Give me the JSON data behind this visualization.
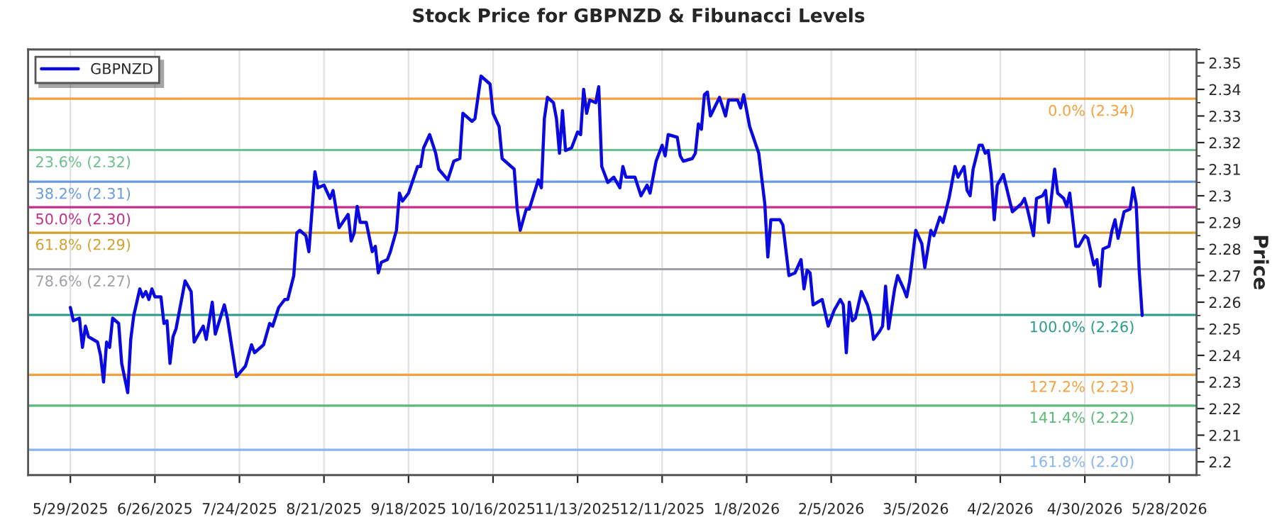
{
  "chart_data": {
    "type": "line",
    "title": "Stock Price for GBPNZD & Fibunacci Levels",
    "ylabel": "Price",
    "x": [
      "2025-05-29",
      "2025-05-30",
      "2025-06-01",
      "2025-06-02",
      "2025-06-03",
      "2025-06-04",
      "2025-06-07",
      "2025-06-08",
      "2025-06-09",
      "2025-06-10",
      "2025-06-11",
      "2025-06-12",
      "2025-06-14",
      "2025-06-15",
      "2025-06-17",
      "2025-06-18",
      "2025-06-19",
      "2025-06-21",
      "2025-06-22",
      "2025-06-23",
      "2025-06-24",
      "2025-06-25",
      "2025-06-26",
      "2025-06-28",
      "2025-06-29",
      "2025-06-30",
      "2025-07-01",
      "2025-07-02",
      "2025-07-03",
      "2025-07-06",
      "2025-07-08",
      "2025-07-09",
      "2025-07-12",
      "2025-07-13",
      "2025-07-15",
      "2025-07-16",
      "2025-07-19",
      "2025-07-20",
      "2025-07-23",
      "2025-07-26",
      "2025-07-28",
      "2025-07-29",
      "2025-08-01",
      "2025-08-03",
      "2025-08-04",
      "2025-08-06",
      "2025-08-08",
      "2025-08-09",
      "2025-08-11",
      "2025-08-12",
      "2025-08-13",
      "2025-08-15",
      "2025-08-16",
      "2025-08-18",
      "2025-08-19",
      "2025-08-21",
      "2025-08-23",
      "2025-08-24",
      "2025-08-26",
      "2025-08-29",
      "2025-08-30",
      "2025-08-31",
      "2025-09-01",
      "2025-09-02",
      "2025-09-04",
      "2025-09-06",
      "2025-09-07",
      "2025-09-08",
      "2025-09-09",
      "2025-09-11",
      "2025-09-12",
      "2025-09-14",
      "2025-09-15",
      "2025-09-16",
      "2025-09-18",
      "2025-09-21",
      "2025-09-22",
      "2025-09-23",
      "2025-09-25",
      "2025-09-27",
      "2025-09-28",
      "2025-10-01",
      "2025-10-03",
      "2025-10-05",
      "2025-10-06",
      "2025-10-09",
      "2025-10-10",
      "2025-10-12",
      "2025-10-15",
      "2025-10-16",
      "2025-10-18",
      "2025-10-19",
      "2025-10-22",
      "2025-10-23",
      "2025-10-24",
      "2025-10-25",
      "2025-10-27",
      "2025-10-28",
      "2025-10-31",
      "2025-11-01",
      "2025-11-02",
      "2025-11-03",
      "2025-11-05",
      "2025-11-06",
      "2025-11-07",
      "2025-11-08",
      "2025-11-09",
      "2025-11-11",
      "2025-11-13",
      "2025-11-14",
      "2025-11-15",
      "2025-11-16",
      "2025-11-17",
      "2025-11-19",
      "2025-11-20",
      "2025-11-21",
      "2025-11-23",
      "2025-11-25",
      "2025-11-27",
      "2025-11-28",
      "2025-11-29",
      "2025-12-02",
      "2025-12-04",
      "2025-12-06",
      "2025-12-07",
      "2025-12-09",
      "2025-12-11",
      "2025-12-12",
      "2025-12-13",
      "2025-12-16",
      "2025-12-17",
      "2025-12-18",
      "2025-12-21",
      "2025-12-22",
      "2025-12-23",
      "2025-12-24",
      "2025-12-25",
      "2025-12-26",
      "2025-12-27",
      "2025-12-30",
      "2026-01-01",
      "2026-01-02",
      "2026-01-05",
      "2026-01-06",
      "2026-01-07",
      "2026-01-09",
      "2026-01-12",
      "2026-01-14",
      "2026-01-15",
      "2026-01-16",
      "2026-01-19",
      "2026-01-20",
      "2026-01-22",
      "2026-01-24",
      "2026-01-26",
      "2026-01-27",
      "2026-01-28",
      "2026-01-29",
      "2026-01-30",
      "2026-02-02",
      "2026-02-04",
      "2026-02-06",
      "2026-02-08",
      "2026-02-09",
      "2026-02-10",
      "2026-02-11",
      "2026-02-12",
      "2026-02-13",
      "2026-02-15",
      "2026-02-17",
      "2026-02-18",
      "2026-02-19",
      "2026-02-21",
      "2026-02-22",
      "2026-02-23",
      "2026-02-24",
      "2026-02-26",
      "2026-02-27",
      "2026-03-01",
      "2026-03-02",
      "2026-03-03",
      "2026-03-05",
      "2026-03-07",
      "2026-03-08",
      "2026-03-10",
      "2026-03-11",
      "2026-03-13",
      "2026-03-14",
      "2026-03-16",
      "2026-03-18",
      "2026-03-19",
      "2026-03-21",
      "2026-03-22",
      "2026-03-23",
      "2026-03-24",
      "2026-03-26",
      "2026-03-27",
      "2026-03-28",
      "2026-03-29",
      "2026-03-30",
      "2026-03-31",
      "2026-04-01",
      "2026-04-03",
      "2026-04-06",
      "2026-04-07",
      "2026-04-09",
      "2026-04-10",
      "2026-04-11",
      "2026-04-13",
      "2026-04-14",
      "2026-04-16",
      "2026-04-17",
      "2026-04-18",
      "2026-04-20",
      "2026-04-21",
      "2026-04-23",
      "2026-04-24",
      "2026-04-25",
      "2026-04-27",
      "2026-04-28",
      "2026-04-30",
      "2026-05-01",
      "2026-05-03",
      "2026-05-04",
      "2026-05-05",
      "2026-05-06",
      "2026-05-08",
      "2026-05-09",
      "2026-05-10",
      "2026-05-11",
      "2026-05-13",
      "2026-05-15",
      "2026-05-16",
      "2026-05-17",
      "2026-05-18",
      "2026-05-19"
    ],
    "series": [
      {
        "name": "GBPNZD",
        "color": "#0a0ae0",
        "values": [
          2.258,
          2.253,
          2.254,
          2.243,
          2.251,
          2.247,
          2.245,
          2.24,
          2.23,
          2.245,
          2.243,
          2.254,
          2.252,
          2.237,
          2.226,
          2.246,
          2.255,
          2.265,
          2.262,
          2.264,
          2.261,
          2.265,
          2.262,
          2.262,
          2.252,
          2.253,
          2.237,
          2.247,
          2.25,
          2.268,
          2.264,
          2.245,
          2.251,
          2.246,
          2.26,
          2.248,
          2.259,
          2.254,
          2.232,
          2.236,
          2.244,
          2.241,
          2.244,
          2.252,
          2.251,
          2.258,
          2.261,
          2.261,
          2.27,
          2.286,
          2.287,
          2.285,
          2.279,
          2.309,
          2.303,
          2.304,
          2.299,
          2.302,
          2.288,
          2.293,
          2.283,
          2.286,
          2.296,
          2.29,
          2.29,
          2.279,
          2.281,
          2.271,
          2.275,
          2.276,
          2.279,
          2.287,
          2.301,
          2.298,
          2.301,
          2.311,
          2.311,
          2.318,
          2.323,
          2.316,
          2.31,
          2.306,
          2.313,
          2.314,
          2.331,
          2.328,
          2.329,
          2.345,
          2.342,
          2.331,
          2.326,
          2.314,
          2.311,
          2.31,
          2.295,
          2.287,
          2.295,
          2.295,
          2.306,
          2.303,
          2.329,
          2.337,
          2.335,
          2.329,
          2.316,
          2.332,
          2.317,
          2.318,
          2.324,
          2.323,
          2.34,
          2.331,
          2.336,
          2.335,
          2.341,
          2.311,
          2.305,
          2.307,
          2.303,
          2.311,
          2.307,
          2.307,
          2.3,
          2.304,
          2.301,
          2.313,
          2.319,
          2.315,
          2.323,
          2.322,
          2.315,
          2.313,
          2.314,
          2.316,
          2.327,
          2.325,
          2.338,
          2.339,
          2.33,
          2.337,
          2.33,
          2.336,
          2.336,
          2.333,
          2.338,
          2.326,
          2.316,
          2.297,
          2.277,
          2.291,
          2.291,
          2.289,
          2.27,
          2.271,
          2.276,
          2.265,
          2.272,
          2.271,
          2.259,
          2.261,
          2.251,
          2.257,
          2.261,
          2.259,
          2.241,
          2.26,
          2.253,
          2.254,
          2.264,
          2.259,
          2.255,
          2.246,
          2.249,
          2.251,
          2.266,
          2.25,
          2.265,
          2.27,
          2.265,
          2.262,
          2.268,
          2.287,
          2.282,
          2.273,
          2.287,
          2.285,
          2.292,
          2.29,
          2.299,
          2.311,
          2.307,
          2.311,
          2.302,
          2.3,
          2.31,
          2.319,
          2.319,
          2.316,
          2.317,
          2.308,
          2.291,
          2.304,
          2.308,
          2.294,
          2.295,
          2.297,
          2.299,
          2.295,
          2.285,
          2.299,
          2.3,
          2.302,
          2.29,
          2.31,
          2.301,
          2.299,
          2.296,
          2.301,
          2.281,
          2.281,
          2.285,
          2.284,
          2.274,
          2.276,
          2.266,
          2.28,
          2.281,
          2.287,
          2.291,
          2.284,
          2.294,
          2.295,
          2.303,
          2.297,
          2.272,
          2.255
        ]
      }
    ],
    "ref_lines": [
      {
        "axis": "y",
        "value": 2.3365,
        "label": "0.0% (2.34)",
        "color": "#f5a040"
      },
      {
        "axis": "y",
        "value": 2.3172,
        "label": "23.6% (2.32)",
        "color": "#6cc08c"
      },
      {
        "axis": "y",
        "value": 2.3053,
        "label": "38.2% (2.31)",
        "color": "#6a9ae0"
      },
      {
        "axis": "y",
        "value": 2.2957,
        "label": "50.0% (2.30)",
        "color": "#c0308a"
      },
      {
        "axis": "y",
        "value": 2.2861,
        "label": "61.8% (2.29)",
        "color": "#d4a030"
      },
      {
        "axis": "y",
        "value": 2.2724,
        "label": "78.6% (2.27)",
        "color": "#a0a0a8"
      },
      {
        "axis": "y",
        "value": 2.2552,
        "label": "100.0% (2.26)",
        "color": "#2a9a8a"
      },
      {
        "axis": "y",
        "value": 2.2327,
        "label": "127.2% (2.23)",
        "color": "#f5a040"
      },
      {
        "axis": "y",
        "value": 2.2211,
        "label": "141.4% (2.22)",
        "color": "#5cb878"
      },
      {
        "axis": "y",
        "value": 2.2045,
        "label": "161.8% (2.20)",
        "color": "#8ab4ee"
      }
    ],
    "xlim": [
      "2025-05-15",
      "2026-06-06"
    ],
    "xticks": [
      {
        "value": "2025-05-29",
        "label": "5/29/2025"
      },
      {
        "value": "2025-06-26",
        "label": "6/26/2025"
      },
      {
        "value": "2025-07-24",
        "label": "7/24/2025"
      },
      {
        "value": "2025-08-21",
        "label": "8/21/2025"
      },
      {
        "value": "2025-09-18",
        "label": "9/18/2025"
      },
      {
        "value": "2025-10-16",
        "label": "10/16/2025"
      },
      {
        "value": "2025-11-13",
        "label": "11/13/2025"
      },
      {
        "value": "2025-12-11",
        "label": "12/11/2025"
      },
      {
        "value": "2026-01-08",
        "label": "1/8/2026"
      },
      {
        "value": "2026-02-05",
        "label": "2/5/2026"
      },
      {
        "value": "2026-03-05",
        "label": "3/5/2026"
      },
      {
        "value": "2026-04-02",
        "label": "4/2/2026"
      },
      {
        "value": "2026-04-30",
        "label": "4/30/2026"
      },
      {
        "value": "2026-05-28",
        "label": "5/28/2026"
      }
    ],
    "ylim": [
      2.195,
      2.355
    ],
    "yticks": [
      2.2,
      2.21,
      2.22,
      2.23,
      2.24,
      2.25,
      2.26,
      2.27,
      2.28,
      2.29,
      2.3,
      2.31,
      2.32,
      2.33,
      2.34,
      2.35
    ],
    "grid": "x",
    "legend": "top left",
    "marker": "none",
    "line_style": "solid"
  }
}
